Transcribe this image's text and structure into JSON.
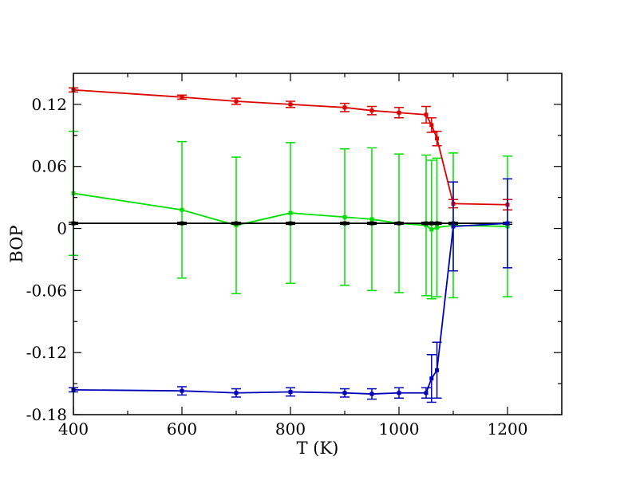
{
  "chart_data": {
    "type": "line",
    "title": "",
    "xlabel": "T (K)",
    "ylabel": "BOP",
    "xlim": [
      400,
      1300
    ],
    "ylim": [
      -0.18,
      0.15
    ],
    "x_ticks": [
      400,
      600,
      800,
      1000,
      1200
    ],
    "x_tick_labels": [
      "400",
      "600",
      "800",
      "1000",
      "1200"
    ],
    "y_ticks": [
      -0.18,
      -0.12,
      -0.06,
      0,
      0.06,
      0.12
    ],
    "y_tick_labels": [
      "-0.18",
      "-0.12",
      "-0.06",
      "0",
      "0.06",
      "0.12"
    ],
    "grid": false,
    "legend": "none",
    "series": [
      {
        "color": "#00e000",
        "x": [
          400,
          600,
          700,
          800,
          900,
          950,
          1000,
          1050,
          1060,
          1070,
          1100,
          1200
        ],
        "y": [
          0.034,
          0.018,
          0.003,
          0.015,
          0.011,
          0.009,
          0.005,
          0.003,
          -0.001,
          0.001,
          0.003,
          0.002
        ],
        "err": [
          0.06,
          0.066,
          0.066,
          0.068,
          0.066,
          0.069,
          0.067,
          0.068,
          0.067,
          0.067,
          0.07,
          0.068
        ]
      },
      {
        "color": "#000000",
        "x": [
          400,
          600,
          700,
          800,
          900,
          950,
          1000,
          1050,
          1060,
          1070,
          1100,
          1200
        ],
        "y": [
          0.005,
          0.005,
          0.005,
          0.005,
          0.005,
          0.005,
          0.005,
          0.005,
          0.005,
          0.005,
          0.005,
          0.005
        ],
        "err": [
          0.001,
          0.001,
          0.001,
          0.001,
          0.001,
          0.001,
          0.001,
          0.001,
          0.001,
          0.001,
          0.001,
          0.001
        ]
      },
      {
        "color": "#dd0000",
        "x": [
          400,
          600,
          700,
          800,
          900,
          950,
          1000,
          1050,
          1060,
          1070,
          1100,
          1200
        ],
        "y": [
          0.134,
          0.127,
          0.123,
          0.12,
          0.117,
          0.114,
          0.112,
          0.11,
          0.1,
          0.087,
          0.024,
          0.023
        ],
        "err": [
          0.002,
          0.002,
          0.003,
          0.003,
          0.004,
          0.004,
          0.005,
          0.008,
          0.007,
          0.007,
          0.004,
          0.005
        ]
      },
      {
        "color": "#0000bb",
        "x": [
          400,
          600,
          700,
          800,
          900,
          950,
          1000,
          1050,
          1060,
          1070,
          1100,
          1200
        ],
        "y": [
          -0.156,
          -0.157,
          -0.159,
          -0.158,
          -0.159,
          -0.16,
          -0.159,
          -0.159,
          -0.145,
          -0.137,
          0.002,
          0.005
        ],
        "err": [
          0.002,
          0.004,
          0.004,
          0.004,
          0.004,
          0.005,
          0.005,
          0.005,
          0.023,
          0.027,
          0.043,
          0.043
        ]
      }
    ]
  }
}
